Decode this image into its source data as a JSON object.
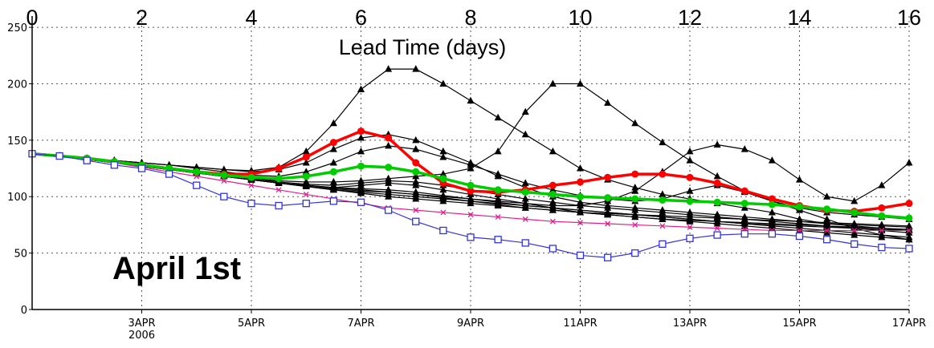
{
  "chart_data": {
    "type": "line",
    "title": "",
    "top_axis": {
      "label": "Lead Time  (days)",
      "ticks": [
        0,
        2,
        4,
        6,
        8,
        10,
        12,
        14,
        16
      ],
      "range": [
        0,
        16
      ]
    },
    "xlabel": "",
    "ylabel": "",
    "x_range": [
      1,
      17
    ],
    "x_ticks": [
      {
        "x": 3,
        "label": "3APR",
        "sub": "2006"
      },
      {
        "x": 5,
        "label": "5APR",
        "sub": ""
      },
      {
        "x": 7,
        "label": "7APR",
        "sub": ""
      },
      {
        "x": 9,
        "label": "9APR",
        "sub": ""
      },
      {
        "x": 11,
        "label": "11APR",
        "sub": ""
      },
      {
        "x": 13,
        "label": "13APR",
        "sub": ""
      },
      {
        "x": 15,
        "label": "15APR",
        "sub": ""
      },
      {
        "x": 17,
        "label": "17APR",
        "sub": ""
      }
    ],
    "ylim": [
      0,
      260
    ],
    "y_ticks": [
      0,
      50,
      100,
      150,
      200,
      250
    ],
    "grid": true,
    "annotation": "April 1st",
    "x": [
      1,
      1.5,
      2,
      2.5,
      3,
      3.5,
      4,
      4.5,
      5,
      5.5,
      6,
      6.5,
      7,
      7.5,
      8,
      8.5,
      9,
      9.5,
      10,
      10.5,
      11,
      11.5,
      12,
      12.5,
      13,
      13.5,
      14,
      14.5,
      15,
      15.5,
      16,
      16.5,
      17
    ],
    "series": [
      {
        "role": "member-high-1",
        "color": "#000000",
        "marker": "triangle",
        "width": 1.2,
        "values": [
          138,
          136,
          134,
          132,
          130,
          128,
          126,
          124,
          123,
          126,
          140,
          165,
          195,
          213,
          213,
          200,
          185,
          170,
          155,
          140,
          125,
          115,
          108,
          102,
          98,
          94,
          90,
          86,
          80,
          76,
          74,
          72,
          70
        ]
      },
      {
        "role": "member-high-2",
        "color": "#000000",
        "marker": "triangle",
        "width": 1.2,
        "values": [
          138,
          136,
          134,
          131,
          128,
          125,
          122,
          119,
          116,
          114,
          113,
          113,
          114,
          116,
          118,
          120,
          125,
          140,
          175,
          200,
          200,
          183,
          165,
          148,
          132,
          118,
          105,
          96,
          90,
          86,
          84,
          82,
          80
        ]
      },
      {
        "role": "member-high-3",
        "color": "#000000",
        "marker": "triangle",
        "width": 1.2,
        "values": [
          138,
          136,
          133,
          130,
          127,
          124,
          121,
          118,
          115,
          112,
          110,
          108,
          106,
          104,
          102,
          100,
          98,
          96,
          94,
          92,
          92,
          96,
          105,
          122,
          140,
          146,
          142,
          132,
          115,
          100,
          96,
          110,
          130
        ]
      },
      {
        "role": "member-mid-1",
        "color": "#000000",
        "marker": "triangle",
        "width": 1.2,
        "values": [
          138,
          136,
          134,
          132,
          130,
          128,
          126,
          124,
          122,
          124,
          130,
          142,
          152,
          155,
          150,
          140,
          130,
          118,
          108,
          100,
          95,
          92,
          90,
          88,
          86,
          84,
          82,
          80,
          78,
          76,
          75,
          74,
          73
        ]
      },
      {
        "role": "member-mid-2",
        "color": "#000000",
        "marker": "triangle",
        "width": 1.2,
        "values": [
          138,
          136,
          134,
          132,
          130,
          128,
          125,
          122,
          119,
          118,
          122,
          130,
          140,
          145,
          142,
          135,
          128,
          120,
          112,
          106,
          101,
          98,
          96,
          98,
          105,
          110,
          104,
          96,
          88,
          80,
          72,
          66,
          62
        ]
      },
      {
        "role": "member-low-1",
        "color": "#000000",
        "marker": "triangle",
        "width": 1.2,
        "values": [
          138,
          136,
          134,
          131,
          128,
          125,
          122,
          119,
          116,
          113,
          111,
          110,
          112,
          114,
          113,
          110,
          106,
          102,
          98,
          95,
          92,
          90,
          88,
          86,
          84,
          82,
          80,
          78,
          76,
          74,
          72,
          70,
          68
        ]
      },
      {
        "role": "member-low-2",
        "color": "#000000",
        "marker": "triangle",
        "width": 1.2,
        "values": [
          138,
          136,
          133,
          130,
          127,
          124,
          121,
          118,
          115,
          112,
          109,
          106,
          104,
          102,
          100,
          98,
          96,
          94,
          92,
          90,
          88,
          86,
          84,
          82,
          80,
          78,
          76,
          75,
          74,
          73,
          72,
          71,
          70
        ]
      },
      {
        "role": "member-low-3",
        "color": "#000000",
        "marker": "triangle",
        "width": 1.2,
        "values": [
          138,
          136,
          133,
          130,
          127,
          124,
          121,
          118,
          115,
          112,
          110,
          108,
          107,
          106,
          104,
          101,
          98,
          95,
          92,
          90,
          88,
          86,
          84,
          82,
          80,
          78,
          76,
          74,
          72,
          70,
          68,
          66,
          64
        ]
      },
      {
        "role": "member-low-4",
        "color": "#000000",
        "marker": "triangle",
        "width": 1.2,
        "values": [
          138,
          136,
          133,
          130,
          127,
          124,
          121,
          118,
          115,
          112,
          110,
          108,
          110,
          112,
          110,
          106,
          102,
          98,
          94,
          90,
          86,
          84,
          82,
          80,
          78,
          76,
          74,
          72,
          70,
          68,
          66,
          64,
          62
        ]
      },
      {
        "role": "member-low-5",
        "color": "#000000",
        "marker": "triangle",
        "width": 1.2,
        "values": [
          138,
          136,
          133,
          130,
          127,
          124,
          121,
          118,
          115,
          112,
          109,
          107,
          105,
          104,
          102,
          99,
          96,
          93,
          90,
          88,
          86,
          84,
          82,
          80,
          79,
          78,
          77,
          76,
          75,
          74,
          73,
          72,
          71
        ]
      },
      {
        "role": "member-low-6",
        "color": "#000000",
        "marker": "triangle",
        "width": 1.2,
        "values": [
          138,
          136,
          133,
          130,
          127,
          124,
          121,
          118,
          115,
          112,
          109,
          106,
          103,
          100,
          98,
          96,
          94,
          92,
          90,
          88,
          86,
          85,
          84,
          83,
          82,
          81,
          80,
          79,
          78,
          77,
          76,
          75,
          74
        ]
      },
      {
        "role": "magenta",
        "color": "#e0208a",
        "marker": "x",
        "width": 1.2,
        "values": [
          138,
          136,
          133,
          130,
          126,
          122,
          118,
          114,
          110,
          106,
          102,
          98,
          94,
          90,
          88,
          86,
          84,
          82,
          80,
          78,
          77,
          76,
          75,
          74,
          73,
          72,
          71,
          70,
          70,
          70,
          70,
          70,
          70
        ]
      },
      {
        "role": "red",
        "color": "#ff0000",
        "marker": "circle",
        "width": 3.5,
        "values": [
          138,
          136,
          134,
          131,
          128,
          125,
          122,
          120,
          120,
          125,
          135,
          148,
          158,
          152,
          130,
          112,
          105,
          104,
          106,
          110,
          113,
          117,
          120,
          120,
          117,
          112,
          105,
          98,
          92,
          88,
          87,
          90,
          94
        ]
      },
      {
        "role": "green",
        "color": "#00cc00",
        "marker": "circle",
        "width": 3.5,
        "values": [
          138,
          136,
          134,
          131,
          128,
          125,
          122,
          119,
          117,
          116,
          118,
          122,
          127,
          126,
          122,
          116,
          110,
          106,
          104,
          102,
          100,
          99,
          98,
          97,
          96,
          95,
          94,
          93,
          91,
          89,
          86,
          83,
          81
        ]
      },
      {
        "role": "blue",
        "color": "#3333dd",
        "marker": "square",
        "width": 1.2,
        "values": [
          138,
          136,
          132,
          128,
          125,
          120,
          110,
          100,
          94,
          92,
          94,
          96,
          95,
          88,
          78,
          70,
          64,
          62,
          59,
          54,
          48,
          46,
          50,
          58,
          63,
          66,
          67,
          67,
          65,
          62,
          58,
          55,
          54
        ]
      }
    ]
  }
}
